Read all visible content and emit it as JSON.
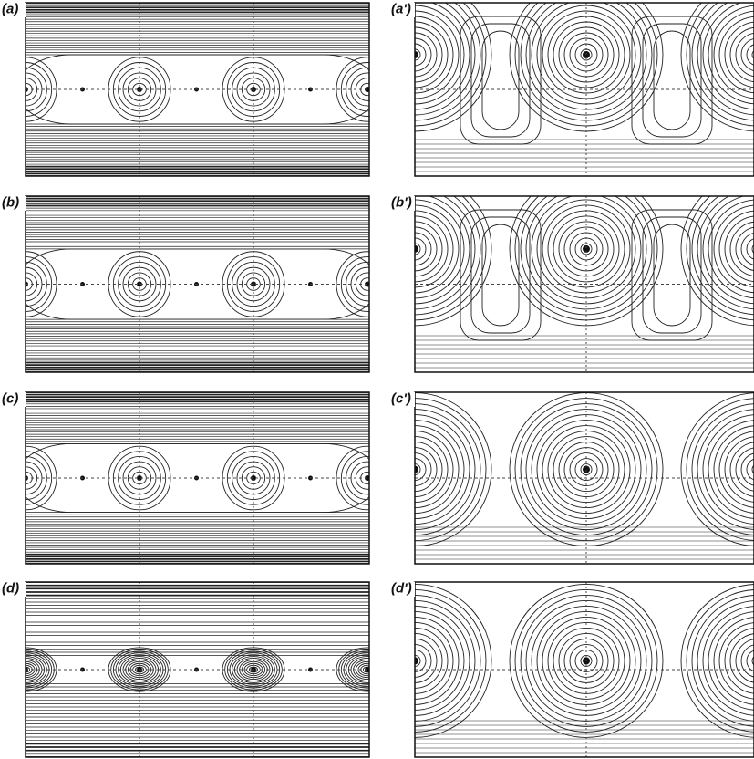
{
  "panels": [
    {
      "label": "(a)"
    },
    {
      "label": "(a')"
    },
    {
      "label": "(b)"
    },
    {
      "label": "(b')"
    },
    {
      "label": "(c)"
    },
    {
      "label": "(c')"
    },
    {
      "label": "(d)"
    },
    {
      "label": "(d')"
    }
  ]
}
